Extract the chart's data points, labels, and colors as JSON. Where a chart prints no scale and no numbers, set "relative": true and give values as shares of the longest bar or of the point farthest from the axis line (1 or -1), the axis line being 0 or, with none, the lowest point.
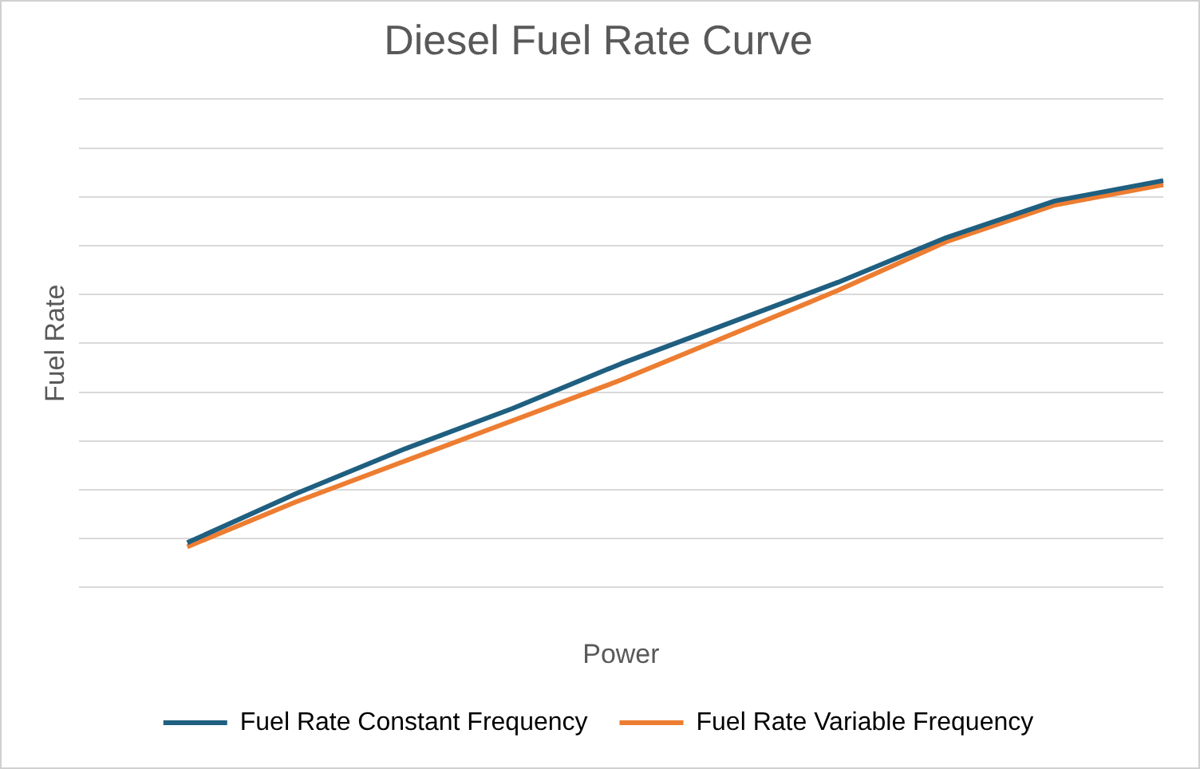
{
  "chart_data": {
    "type": "line",
    "title": "Diesel Fuel Rate Curve",
    "xlabel": "Power",
    "ylabel": "Fuel Rate",
    "relative": true,
    "grid": "y",
    "legend": "bottom",
    "marker": "none",
    "line_style": "solid",
    "categories": [
      null,
      null,
      null,
      null,
      null,
      null,
      null,
      null,
      null,
      null,
      null
    ],
    "series": [
      {
        "name": "Fuel Rate Constant Frequency",
        "color": "#1f5f80",
        "values": [
          null,
          0.11,
          0.23,
          0.34,
          0.44,
          0.55,
          0.65,
          0.75,
          0.86,
          0.95,
          1
        ]
      },
      {
        "name": "Fuel Rate Variable Frequency",
        "color": "#ed7d31",
        "values": [
          null,
          0.1,
          0.21,
          0.31,
          0.41,
          0.51,
          0.62,
          0.73,
          0.85,
          0.94,
          0.99
        ]
      }
    ]
  }
}
